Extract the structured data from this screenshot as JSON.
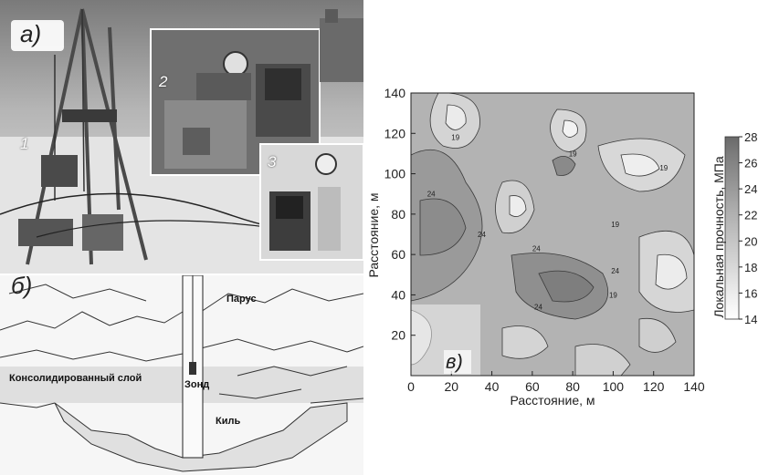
{
  "panels": {
    "a": {
      "letter": "а)",
      "photo_numbers": [
        "1",
        "2",
        "3"
      ]
    },
    "b": {
      "letter": "б)",
      "labels": {
        "sail": "Парус",
        "consolidated_layer": "Консолидированный слой",
        "probe": "Зонд",
        "keel": "Киль"
      }
    },
    "c": {
      "letter": "в)"
    }
  },
  "chart_data": {
    "type": "contour",
    "xlabel": "Расстояние, м",
    "ylabel": "Расстояние, м",
    "xlim": [
      0,
      140
    ],
    "ylim": [
      0,
      140
    ],
    "x_ticks": [
      "0",
      "20",
      "40",
      "60",
      "80",
      "100",
      "120",
      "140"
    ],
    "y_ticks": [
      "20",
      "40",
      "60",
      "80",
      "100",
      "120",
      "140"
    ],
    "colorbar": {
      "label": "Локальная прочность, МПа",
      "range": [
        14,
        28
      ],
      "ticks": [
        "14",
        "16",
        "18",
        "20",
        "22",
        "24",
        "26",
        "28"
      ]
    },
    "contour_labels": [
      {
        "value": "19",
        "x": 22,
        "y": 118
      },
      {
        "value": "19",
        "x": 80,
        "y": 110
      },
      {
        "value": "19",
        "x": 125,
        "y": 103
      },
      {
        "value": "24",
        "x": 10,
        "y": 90
      },
      {
        "value": "24",
        "x": 35,
        "y": 70
      },
      {
        "value": "24",
        "x": 62,
        "y": 63
      },
      {
        "value": "19",
        "x": 101,
        "y": 75
      },
      {
        "value": "24",
        "x": 101,
        "y": 52
      },
      {
        "value": "19",
        "x": 100,
        "y": 40
      },
      {
        "value": "24",
        "x": 63,
        "y": 34
      }
    ]
  }
}
